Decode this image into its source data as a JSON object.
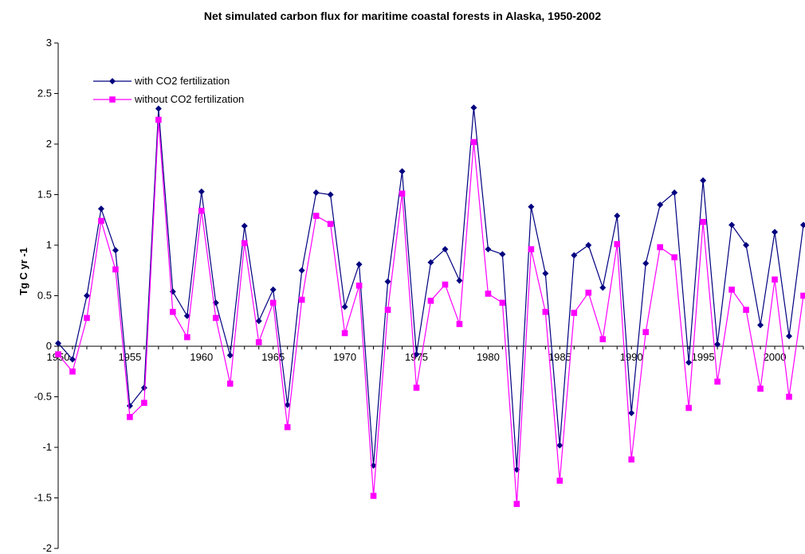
{
  "chart_data": {
    "type": "line",
    "title": "Net simulated carbon flux for maritime coastal forests in Alaska, 1950-2002",
    "xlabel": "",
    "ylabel": "Tg C yr -1",
    "ylim": [
      -2,
      3
    ],
    "xlim": [
      1950,
      2002
    ],
    "yticks": [
      "3",
      "2.5",
      "2",
      "1.5",
      "1",
      "0.5",
      "0",
      "-0.5",
      "-1",
      "-1.5",
      "-2"
    ],
    "xticks": [
      "1950",
      "1955",
      "1960",
      "1965",
      "1970",
      "1975",
      "1980",
      "1985",
      "1990",
      "1995",
      "2000"
    ],
    "grid": false,
    "legend_position": "top-left",
    "x": [
      1950,
      1951,
      1952,
      1953,
      1954,
      1955,
      1956,
      1957,
      1958,
      1959,
      1960,
      1961,
      1962,
      1963,
      1964,
      1965,
      1966,
      1967,
      1968,
      1969,
      1970,
      1971,
      1972,
      1973,
      1974,
      1975,
      1976,
      1977,
      1978,
      1979,
      1980,
      1981,
      1982,
      1983,
      1984,
      1985,
      1986,
      1987,
      1988,
      1989,
      1990,
      1991,
      1992,
      1993,
      1994,
      1995,
      1996,
      1997,
      1998,
      1999,
      2000,
      2001,
      2002
    ],
    "series": [
      {
        "name": "with CO2 fertilization",
        "color": "#000080",
        "marker": "diamond",
        "values": [
          0.03,
          -0.13,
          0.5,
          1.36,
          0.95,
          -0.59,
          -0.41,
          2.35,
          0.54,
          0.3,
          1.53,
          0.43,
          -0.09,
          1.19,
          0.25,
          0.56,
          -0.58,
          0.75,
          1.52,
          1.5,
          0.39,
          0.81,
          -1.18,
          0.64,
          1.73,
          -0.08,
          0.83,
          0.96,
          0.65,
          2.36,
          0.96,
          0.91,
          -1.22,
          1.38,
          0.72,
          -0.98,
          0.9,
          1.0,
          0.58,
          1.29,
          -0.66,
          0.82,
          1.4,
          1.52,
          -0.16,
          1.64,
          0.02,
          1.2,
          1.0,
          0.21,
          1.13,
          0.1,
          1.2
        ]
      },
      {
        "name": "without CO2 fertilization",
        "color": "#ff00ff",
        "marker": "square",
        "values": [
          -0.08,
          -0.25,
          0.28,
          1.24,
          0.76,
          -0.7,
          -0.56,
          2.24,
          0.34,
          0.09,
          1.34,
          0.28,
          -0.37,
          1.02,
          0.04,
          0.43,
          -0.8,
          0.46,
          1.29,
          1.21,
          0.13,
          0.6,
          -1.48,
          0.36,
          1.51,
          -0.41,
          0.45,
          0.61,
          0.22,
          2.02,
          0.52,
          0.43,
          -1.56,
          0.96,
          0.34,
          -1.33,
          0.33,
          0.53,
          0.07,
          1.01,
          -1.12,
          0.14,
          0.98,
          0.88,
          -0.61,
          1.23,
          -0.35,
          0.56,
          0.36,
          -0.42,
          0.66,
          -0.5,
          0.5
        ]
      }
    ]
  }
}
